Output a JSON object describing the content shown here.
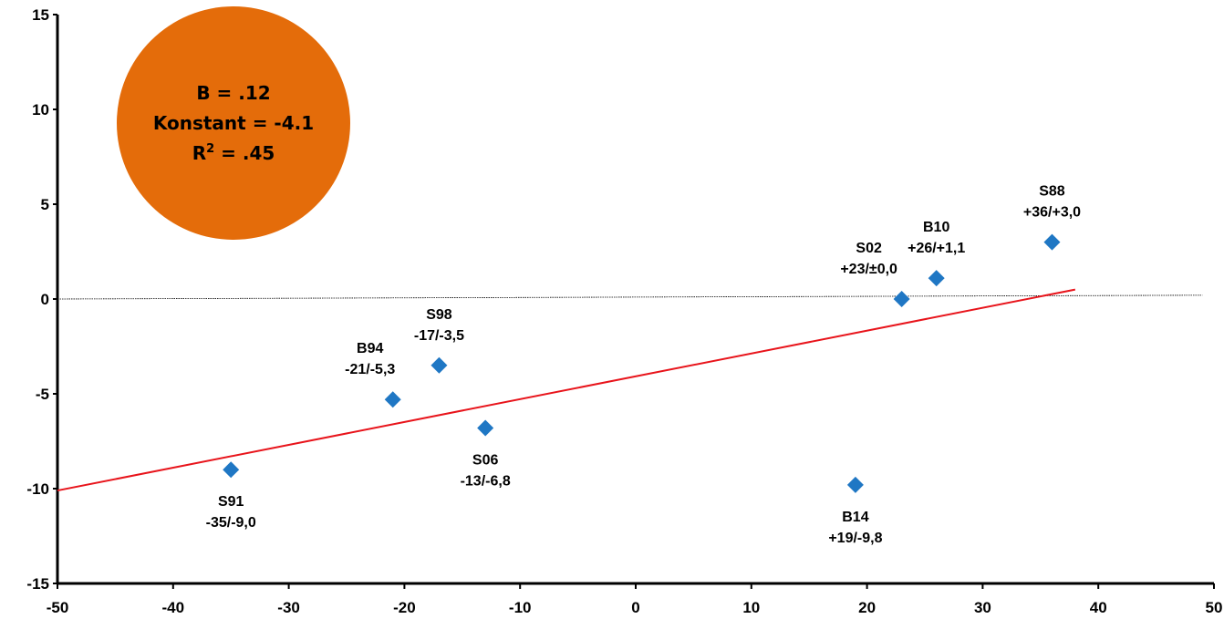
{
  "chart_data": {
    "type": "scatter",
    "xlim": [
      -50,
      50
    ],
    "ylim": [
      -15,
      15
    ],
    "x_ticks": [
      "-50",
      "-40",
      "-30",
      "-20",
      "-10",
      "0",
      "10",
      "20",
      "30",
      "40",
      "50"
    ],
    "y_ticks": [
      "15",
      "10",
      "5",
      "0",
      "-5",
      "-10",
      "-15"
    ],
    "grid": false,
    "points": [
      {
        "name": "S91",
        "x": -35,
        "y": -9.0,
        "label": "-35/-9,0",
        "label_side": "below"
      },
      {
        "name": "B94",
        "x": -21,
        "y": -5.3,
        "label": "-21/-5,3",
        "label_side": "above"
      },
      {
        "name": "S98",
        "x": -17,
        "y": -3.5,
        "label": "-17/-3,5",
        "label_side": "above"
      },
      {
        "name": "S06",
        "x": -13,
        "y": -6.8,
        "label": "-13/-6,8",
        "label_side": "below"
      },
      {
        "name": "B14",
        "x": 19,
        "y": -9.8,
        "label": "+19/-9,8",
        "label_side": "below"
      },
      {
        "name": "S02",
        "x": 23,
        "y": 0.0,
        "label": "+23/±0,0",
        "label_side": "above"
      },
      {
        "name": "B10",
        "x": 26,
        "y": 1.1,
        "label": "+26/+1,1",
        "label_side": "above"
      },
      {
        "name": "S88",
        "x": 36,
        "y": 3.0,
        "label": "+36/+3,0",
        "label_side": "above"
      }
    ],
    "regression_line": {
      "x": [
        -50,
        38
      ],
      "y": [
        -10.1,
        0.5
      ],
      "color": "#e8141b"
    },
    "zero_line": {
      "x": [
        -50,
        49
      ],
      "y": [
        0,
        0.2
      ]
    },
    "annotation": {
      "b_text": "B = .12",
      "konstant_text": "Konstant = -4.1",
      "r_prefix": "R",
      "r_sup": "2",
      "r_value": " = .45",
      "color": "#e46c0a"
    },
    "marker_color": "#1f77c4"
  }
}
